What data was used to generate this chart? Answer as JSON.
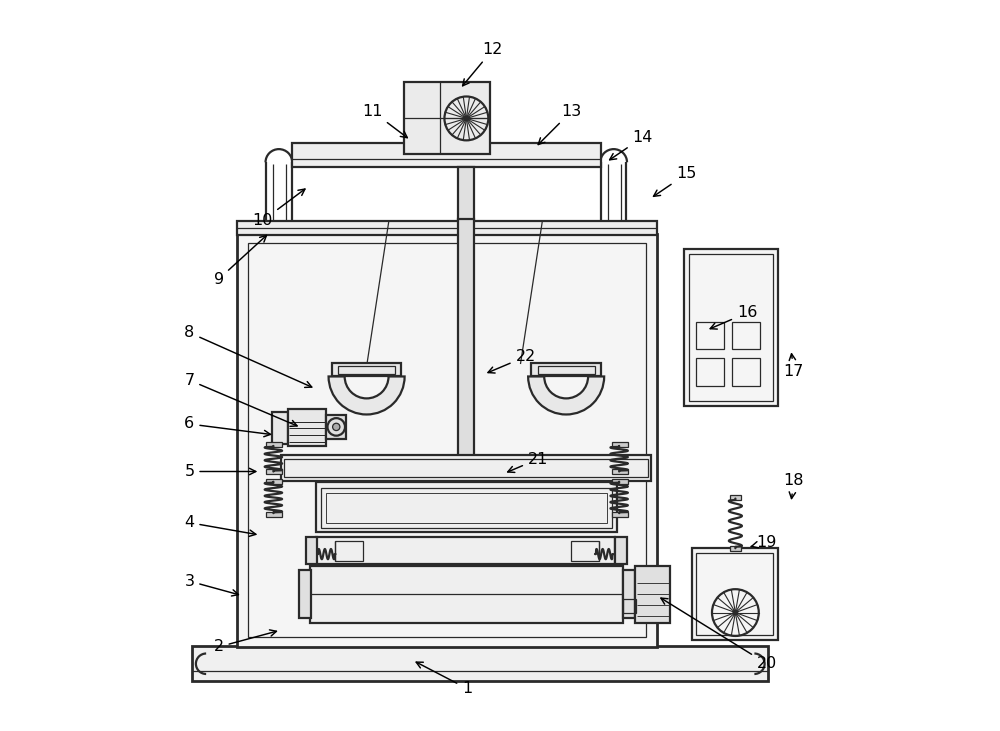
{
  "bg_color": "#ffffff",
  "line_color": "#2a2a2a",
  "lw_main": 1.6,
  "lw_thin": 0.9,
  "lw_thick": 2.0,
  "fig_width": 10.0,
  "fig_height": 7.31,
  "annotations": {
    "1": [
      0.455,
      0.058,
      0.38,
      0.097
    ],
    "2": [
      0.115,
      0.115,
      0.2,
      0.138
    ],
    "3": [
      0.075,
      0.205,
      0.148,
      0.185
    ],
    "4": [
      0.075,
      0.285,
      0.172,
      0.268
    ],
    "5": [
      0.075,
      0.355,
      0.172,
      0.355
    ],
    "6": [
      0.075,
      0.42,
      0.192,
      0.405
    ],
    "7": [
      0.075,
      0.48,
      0.228,
      0.415
    ],
    "8": [
      0.075,
      0.545,
      0.248,
      0.468
    ],
    "9": [
      0.115,
      0.618,
      0.185,
      0.682
    ],
    "10": [
      0.175,
      0.698,
      0.238,
      0.745
    ],
    "11": [
      0.325,
      0.848,
      0.378,
      0.808
    ],
    "12": [
      0.49,
      0.932,
      0.445,
      0.878
    ],
    "13": [
      0.598,
      0.848,
      0.548,
      0.798
    ],
    "14": [
      0.695,
      0.812,
      0.645,
      0.778
    ],
    "15": [
      0.755,
      0.762,
      0.705,
      0.728
    ],
    "16": [
      0.838,
      0.572,
      0.782,
      0.548
    ],
    "17": [
      0.902,
      0.492,
      0.898,
      0.522
    ],
    "18": [
      0.902,
      0.342,
      0.898,
      0.312
    ],
    "19": [
      0.865,
      0.258,
      0.842,
      0.252
    ],
    "20": [
      0.865,
      0.092,
      0.715,
      0.185
    ],
    "21": [
      0.552,
      0.372,
      0.505,
      0.352
    ],
    "22": [
      0.535,
      0.512,
      0.478,
      0.488
    ]
  }
}
